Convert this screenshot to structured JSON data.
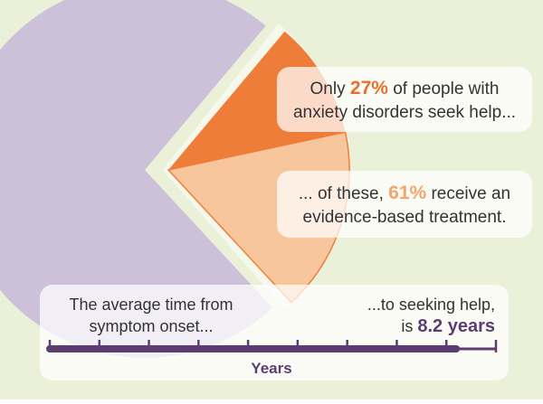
{
  "pie": {
    "values": [
      27,
      61
    ],
    "value_labels": [
      "27%",
      "61%"
    ],
    "colors": [
      "#ef7d3a",
      "#f8c69d"
    ],
    "rest_color": "#cdc1d9",
    "highlight_colors": [
      "#e8702c",
      "#f3a56a"
    ]
  },
  "callouts": [
    {
      "before": "Only ",
      "after": " of people with",
      "line2": "anxiety disorders seek help..."
    },
    {
      "before": "... of these, ",
      "after": " receive an",
      "line2": "evidence-based treatment."
    }
  ],
  "timeline": {
    "left": [
      "The average time from",
      "symptom onset..."
    ],
    "right_line1": "...to seeking help,",
    "right_prefix": "is ",
    "value": 8.2,
    "value_label": "8.2 years",
    "xlim": [
      0,
      9
    ],
    "xticks": [
      0,
      1,
      2,
      3,
      4,
      5,
      6,
      7,
      8,
      9
    ],
    "axis_label": "Years",
    "color": "#5c3d72"
  }
}
